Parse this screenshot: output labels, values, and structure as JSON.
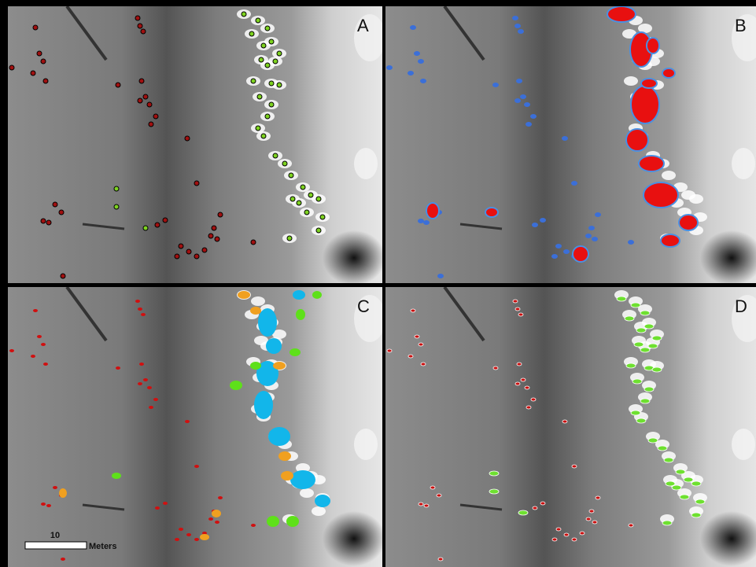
{
  "panels": [
    {
      "label": "A"
    },
    {
      "label": "B"
    },
    {
      "label": "C"
    },
    {
      "label": "D"
    }
  ],
  "scale_bar": {
    "value": "10",
    "unit": "Meters"
  }
}
